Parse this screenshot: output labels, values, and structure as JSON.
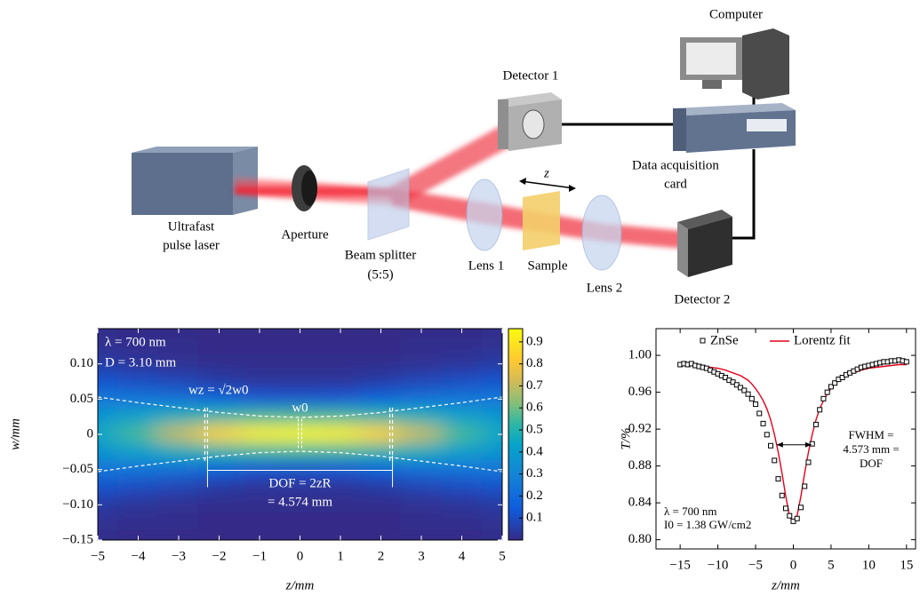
{
  "diagram": {
    "labels": {
      "computer": "Computer",
      "detector_1": "Detector 1",
      "daq": [
        "Data acquisition",
        "card"
      ],
      "laser": [
        "Ultrafast",
        "pulse laser"
      ],
      "aperture": "Aperture",
      "beam_splitter": [
        "Beam splitter",
        "(5:5)"
      ],
      "lens_1": "Lens 1",
      "sample": "Sample",
      "lens_2": "Lens 2",
      "detector_2": "Detector 2",
      "z": "z"
    }
  },
  "chart_data": [
    {
      "type": "heatmap",
      "x": [
        -5,
        -4,
        -3,
        -2,
        -1,
        0,
        1,
        2,
        3,
        4,
        5
      ],
      "y": [
        0.15,
        0.125,
        0.1,
        0.075,
        0.05,
        0.025,
        0,
        -0.025,
        -0.05,
        -0.075,
        -0.1,
        -0.125,
        -0.15
      ],
      "values": [
        [
          0.01,
          0,
          0,
          0,
          0,
          0,
          0,
          0,
          0,
          0,
          0.01
        ],
        [
          0.02,
          0.01,
          0.01,
          0,
          0,
          0,
          0,
          0,
          0.01,
          0.01,
          0.02
        ],
        [
          0.05,
          0.03,
          0.02,
          0.01,
          0.01,
          0.01,
          0.01,
          0.01,
          0.02,
          0.03,
          0.05
        ],
        [
          0.12,
          0.1,
          0.08,
          0.05,
          0.03,
          0.03,
          0.03,
          0.05,
          0.08,
          0.1,
          0.12
        ],
        [
          0.25,
          0.24,
          0.22,
          0.17,
          0.13,
          0.12,
          0.13,
          0.17,
          0.22,
          0.24,
          0.25
        ],
        [
          0.37,
          0.42,
          0.48,
          0.52,
          0.55,
          0.55,
          0.55,
          0.52,
          0.48,
          0.42,
          0.37
        ],
        [
          0.45,
          0.55,
          0.7,
          0.85,
          0.93,
          0.95,
          0.93,
          0.85,
          0.7,
          0.55,
          0.45
        ],
        [
          0.37,
          0.42,
          0.48,
          0.52,
          0.55,
          0.55,
          0.55,
          0.52,
          0.48,
          0.42,
          0.37
        ],
        [
          0.25,
          0.24,
          0.22,
          0.17,
          0.13,
          0.12,
          0.13,
          0.17,
          0.22,
          0.24,
          0.25
        ],
        [
          0.12,
          0.1,
          0.08,
          0.05,
          0.03,
          0.03,
          0.03,
          0.05,
          0.08,
          0.1,
          0.12
        ],
        [
          0.05,
          0.03,
          0.02,
          0.01,
          0.01,
          0.01,
          0.01,
          0.01,
          0.02,
          0.03,
          0.05
        ],
        [
          0.02,
          0.01,
          0.01,
          0,
          0,
          0,
          0,
          0,
          0.01,
          0.01,
          0.02
        ],
        [
          0.01,
          0,
          0,
          0,
          0,
          0,
          0,
          0,
          0,
          0,
          0.01
        ]
      ],
      "xlim": [
        -5,
        5
      ],
      "ylim": [
        -0.15,
        0.15
      ],
      "xticks": [
        {
          "value": -5,
          "label": "−5"
        },
        {
          "value": -4,
          "label": "−4"
        },
        {
          "value": -3,
          "label": "−3"
        },
        {
          "value": -2,
          "label": "−2"
        },
        {
          "value": -1,
          "label": "−1"
        },
        0,
        1,
        2,
        3,
        4,
        5
      ],
      "yticks": [
        {
          "value": 0.1,
          "label": "0.10"
        },
        0.05,
        0,
        {
          "value": -0.05,
          "label": "−0.05"
        },
        {
          "value": -0.1,
          "label": "−0.10"
        },
        {
          "value": -0.15,
          "label": "−0.15"
        }
      ],
      "xlabel": "z/mm",
      "ylabel": "w/mm",
      "clim": [
        0,
        0.96
      ],
      "cticks": [
        0.1,
        0.2,
        0.3,
        0.4,
        0.5,
        0.6,
        0.7,
        0.8,
        0.9
      ],
      "annotations": {
        "lambda": "λ = 700 nm",
        "D": "D = 3.10 mm",
        "wz": "wz = √2w0",
        "w0": "w0",
        "dof": "DOF = 2zR",
        "dof_value": "= 4.574 mm"
      },
      "envelope": {
        "x": [
          -5,
          -4,
          -3,
          -2,
          -1,
          0,
          1,
          2,
          3,
          4,
          5
        ],
        "values": [
          0.053,
          0.045,
          0.038,
          0.031,
          0.026,
          0.024,
          0.026,
          0.031,
          0.038,
          0.045,
          0.053
        ]
      },
      "zR_marks": [
        -2.287,
        2.287
      ]
    },
    {
      "type": "scatter",
      "series": [
        {
          "name": "ZnSe",
          "color": "#000000",
          "x": [
            -15,
            -14.5,
            -14,
            -13.5,
            -13,
            -12.5,
            -12,
            -11.5,
            -11,
            -10.5,
            -10,
            -9.5,
            -9,
            -8.5,
            -8,
            -7.5,
            -7,
            -6.5,
            -6,
            -5.5,
            -5,
            -4.5,
            -4,
            -3.5,
            -3,
            -2.5,
            -2,
            -1.5,
            -1,
            -0.5,
            0,
            0.5,
            1,
            1.5,
            2,
            2.5,
            3,
            3.5,
            4,
            4.5,
            5,
            5.5,
            6,
            6.5,
            7,
            7.5,
            8,
            8.5,
            9,
            9.5,
            10,
            10.5,
            11,
            11.5,
            12,
            12.5,
            13,
            13.5,
            14,
            14.5,
            15
          ],
          "values": [
            0.99,
            0.991,
            0.99,
            0.991,
            0.989,
            0.988,
            0.987,
            0.986,
            0.984,
            0.982,
            0.98,
            0.978,
            0.976,
            0.973,
            0.971,
            0.968,
            0.965,
            0.962,
            0.958,
            0.953,
            0.947,
            0.937,
            0.926,
            0.914,
            0.902,
            0.886,
            0.866,
            0.848,
            0.834,
            0.826,
            0.82,
            0.823,
            0.835,
            0.858,
            0.884,
            0.904,
            0.925,
            0.941,
            0.953,
            0.96,
            0.966,
            0.97,
            0.974,
            0.976,
            0.979,
            0.981,
            0.983,
            0.985,
            0.987,
            0.988,
            0.989,
            0.99,
            0.991,
            0.992,
            0.993,
            0.993,
            0.994,
            0.994,
            0.995,
            0.994,
            0.993
          ]
        },
        {
          "name": "Lorentz fit",
          "color": "#e8001c",
          "x": [
            -15,
            -14,
            -13,
            -12,
            -11,
            -10,
            -9,
            -8,
            -7,
            -6,
            -5.5,
            -5,
            -4.5,
            -4,
            -3.5,
            -3,
            -2.5,
            -2,
            -1.5,
            -1,
            -0.5,
            0,
            0.5,
            1,
            1.5,
            2,
            2.5,
            3,
            3.5,
            4,
            4.5,
            5,
            5.5,
            6,
            7,
            8,
            9,
            10,
            11,
            12,
            13,
            14,
            15
          ],
          "values": [
            0.99,
            0.99,
            0.989,
            0.988,
            0.987,
            0.986,
            0.984,
            0.981,
            0.978,
            0.973,
            0.969,
            0.964,
            0.958,
            0.951,
            0.942,
            0.93,
            0.914,
            0.895,
            0.872,
            0.847,
            0.826,
            0.818,
            0.826,
            0.847,
            0.872,
            0.895,
            0.914,
            0.93,
            0.942,
            0.951,
            0.958,
            0.964,
            0.969,
            0.973,
            0.978,
            0.981,
            0.984,
            0.986,
            0.987,
            0.988,
            0.989,
            0.99,
            0.99
          ]
        }
      ],
      "xlim": [
        -18.2,
        16.2
      ],
      "ylim": [
        0.79,
        1.029
      ],
      "xticks": [
        {
          "value": -15,
          "label": "−15"
        },
        {
          "value": -10,
          "label": "−10"
        },
        {
          "value": -5,
          "label": "−5"
        },
        0,
        5,
        10,
        15
      ],
      "yticks": [
        {
          "value": 0.8,
          "label": "0.80"
        },
        {
          "value": 0.84,
          "label": "0.84"
        },
        {
          "value": 0.88,
          "label": "0.88"
        },
        {
          "value": 0.92,
          "label": "0.92"
        },
        {
          "value": 0.96,
          "label": "0.96"
        },
        {
          "value": 1,
          "label": "1.00"
        }
      ],
      "xlabel": "z/mm",
      "ylabel": "T/%",
      "annotations": {
        "fwhm": [
          "FWHM =",
          "4.573 mm =",
          "DOF"
        ],
        "lambda": "λ = 700 nm",
        "I0": "I0 = 1.38 GW/cm2"
      },
      "fwhm_arrow": {
        "x": [
          -2.2,
          2.4
        ],
        "y": 0.903
      }
    }
  ]
}
